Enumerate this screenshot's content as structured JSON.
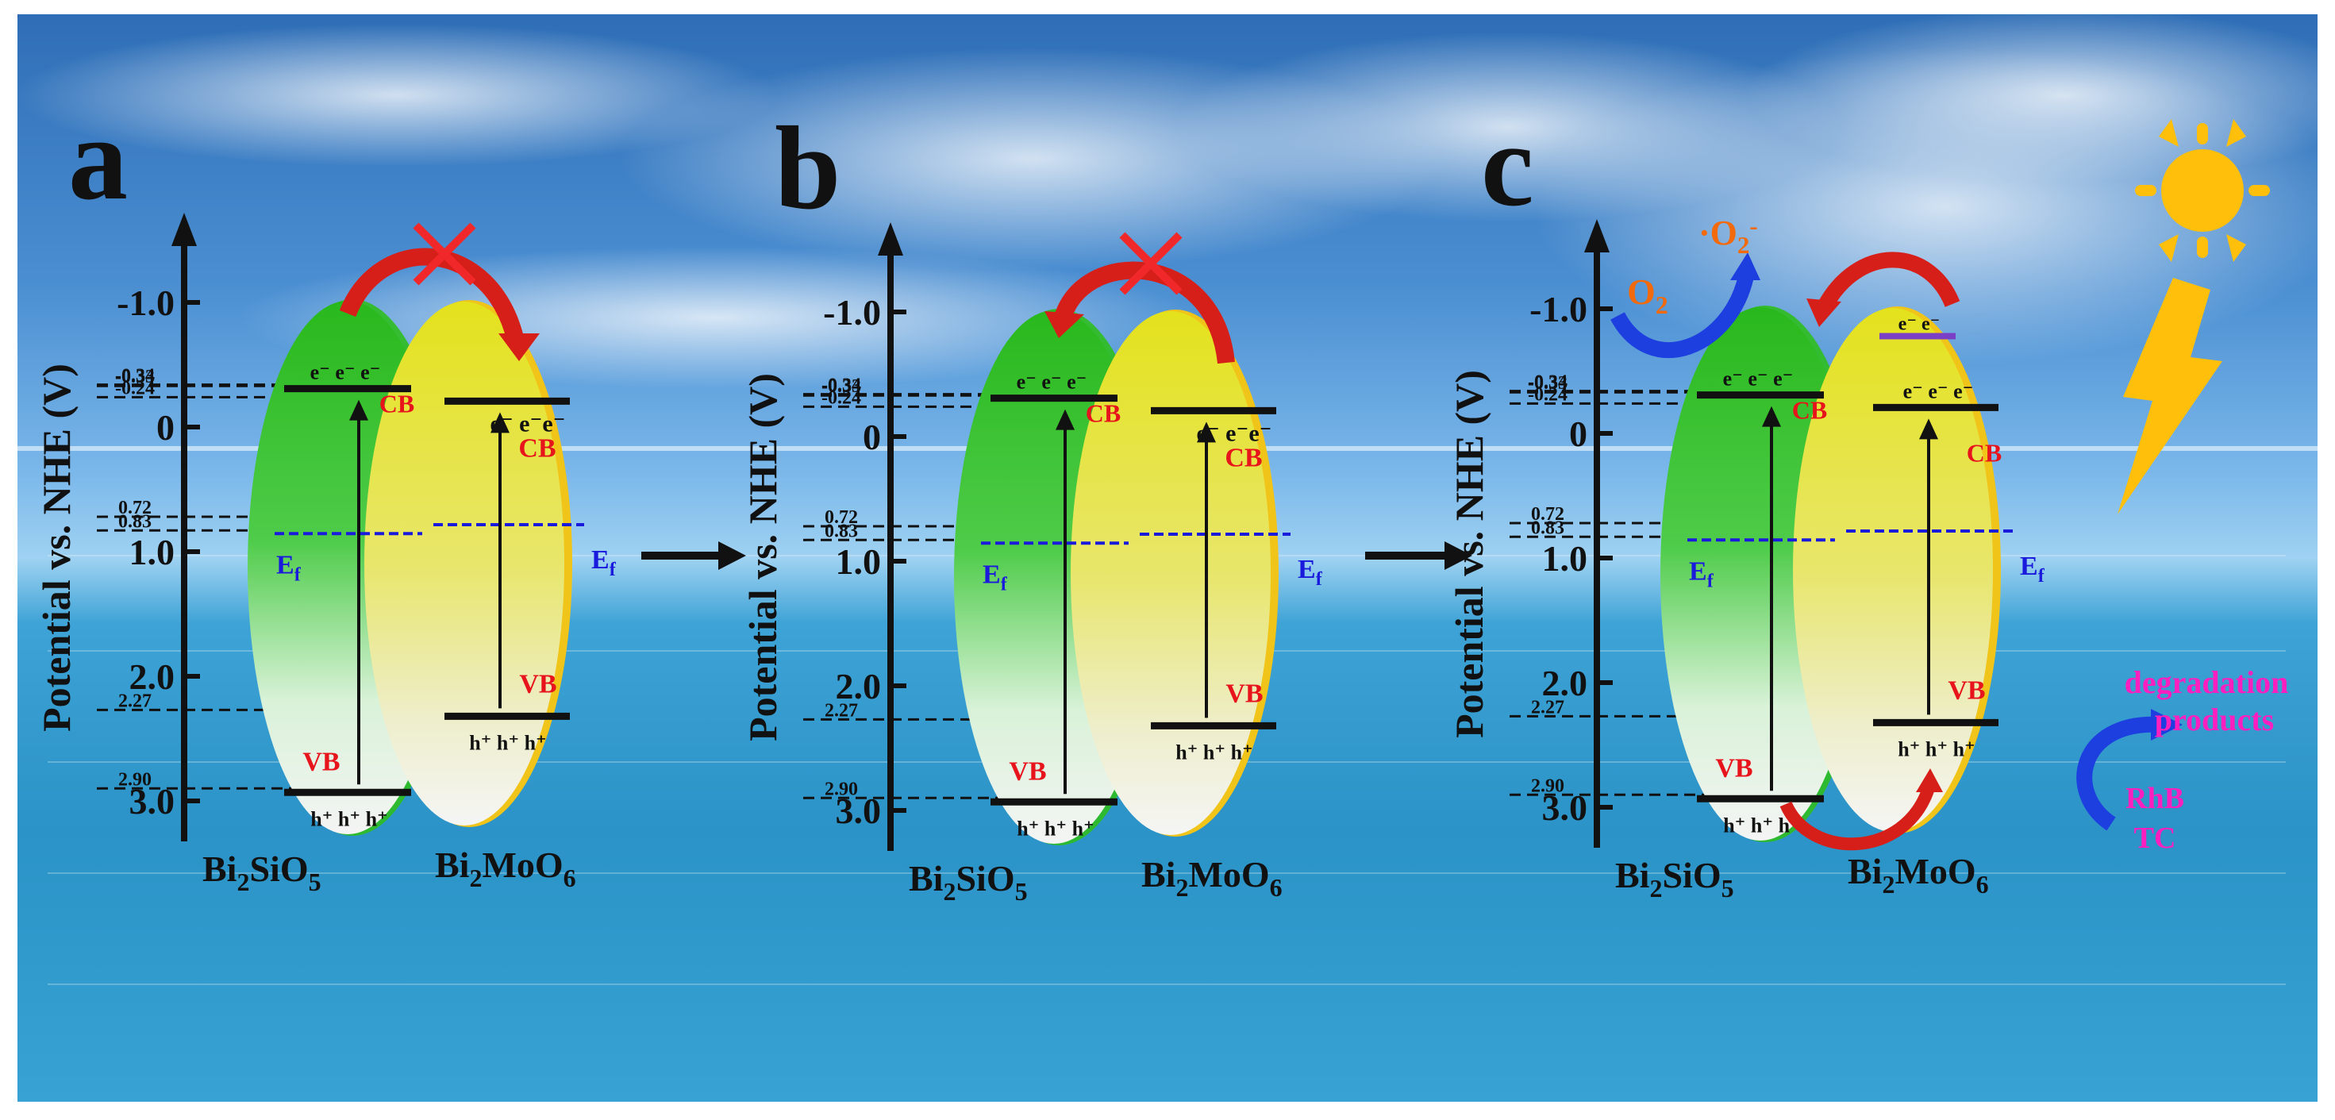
{
  "panels": [
    {
      "letter": "a",
      "axis_label": "Potential vs. NHE (V)",
      "axis_ticks": [
        "-1.0",
        "0",
        "1.0",
        "2.0",
        "3.0"
      ],
      "level_labels": [
        "-0.34",
        "-0.33",
        "-0.24",
        "0.72",
        "0.83",
        "2.27",
        "2.90"
      ],
      "left_material": {
        "name_main": "Bi",
        "name_sub1": "2",
        "name_mid": "SiO",
        "name_sub2": "5",
        "cb": "CB",
        "vb": "VB",
        "ef": "E",
        "ef_sub": "f",
        "electrons": "e⁻  e⁻  e⁻",
        "holes": "h⁺ h⁺ h⁺"
      },
      "right_material": {
        "name_main": "Bi",
        "name_sub1": "2",
        "name_mid": "MoO",
        "name_sub2": "6",
        "cb": "CB",
        "vb": "VB",
        "ef": "E",
        "ef_sub": "f",
        "electrons": "e⁻ e⁻e⁻",
        "holes": "h⁺ h⁺ h⁺"
      }
    },
    {
      "letter": "b",
      "axis_label": "Potential vs. NHE (V)",
      "axis_ticks": [
        "-1.0",
        "0",
        "1.0",
        "2.0",
        "3.0"
      ],
      "level_labels": [
        "-0.34",
        "-0.33",
        "-0.24",
        "0.72",
        "0.83",
        "2.27",
        "2.90"
      ],
      "left_material": {
        "name_main": "Bi",
        "name_sub1": "2",
        "name_mid": "SiO",
        "name_sub2": "5",
        "cb": "CB",
        "vb": "VB",
        "ef": "E",
        "ef_sub": "f",
        "electrons": "e⁻  e⁻  e⁻",
        "holes": "h⁺ h⁺ h⁺"
      },
      "right_material": {
        "name_main": "Bi",
        "name_sub1": "2",
        "name_mid": "MoO",
        "name_sub2": "6",
        "cb": "CB",
        "vb": "VB",
        "ef": "E",
        "ef_sub": "f",
        "electrons": "e⁻ e⁻e⁻",
        "holes": "h⁺ h⁺ h⁺"
      }
    },
    {
      "letter": "c",
      "axis_label": "Potential vs. NHE (V)",
      "axis_ticks": [
        "-1.0",
        "0",
        "1.0",
        "2.0",
        "3.0"
      ],
      "level_labels": [
        "-0.34",
        "-0.33",
        "-0.24",
        "0.72",
        "0.83",
        "2.27",
        "2.90"
      ],
      "left_material": {
        "name_main": "Bi",
        "name_sub1": "2",
        "name_mid": "SiO",
        "name_sub2": "5",
        "cb": "CB",
        "vb": "VB",
        "ef": "E",
        "ef_sub": "f",
        "electrons": "e⁻  e⁻  e⁻",
        "holes": "h⁺ h⁺ h⁺"
      },
      "right_material": {
        "name_main": "Bi",
        "name_sub1": "2",
        "name_mid": "MoO",
        "name_sub2": "6",
        "cb": "CB",
        "vb": "VB",
        "ef": "E",
        "ef_sub": "f",
        "electrons": "e⁻  e⁻  e⁻",
        "electrons_top": "e⁻  e⁻",
        "holes": "h⁺ h⁺ h⁺"
      },
      "oxygen": {
        "o2_main": "O",
        "o2_sub": "2",
        "radical_main": "·O",
        "radical_sub": "2",
        "radical_sup": "-"
      },
      "pollutants": {
        "products_line1": "degradation",
        "products_line2": "products",
        "rhb": "RhB",
        "tc": "TC"
      }
    }
  ],
  "colors": {
    "axis": "#111111",
    "cb_vb_label": "#e8141c",
    "fermi": "#1a1adc",
    "electron_arrow": "#d71f1a",
    "oxygen_text": "#f26a0c",
    "blue_arrow": "#1e3fe0",
    "pollutant_text": "#ff1fbe",
    "green_ellipse": "#2fbe1f",
    "yellow_ellipse": "#e2e02c",
    "sun": "#ffbf0a"
  }
}
